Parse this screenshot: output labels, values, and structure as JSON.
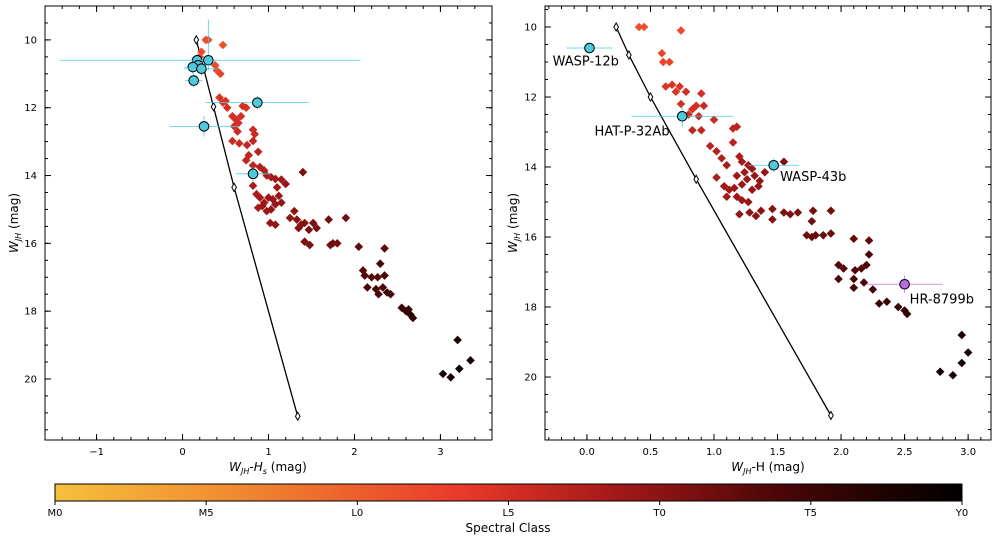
{
  "colors": {
    "planet": "#4ec9de",
    "planet_err": "#4ec9de",
    "hr8799b": "#b56ee0",
    "hr_err": "#d36ae8"
  },
  "chart_data": [
    {
      "type": "scatter",
      "xlabel": "W_JH-H_s (mag)",
      "ylabel": "W_JH (mag)",
      "xlim": [
        -1.6,
        3.6
      ],
      "ylim": [
        21.8,
        9.0
      ],
      "xticks": [
        -1,
        0,
        1,
        2,
        3
      ],
      "xtick_labels": [
        "−1",
        "0",
        "1",
        "2",
        "3"
      ],
      "yticks": [
        10,
        12,
        14,
        16,
        18,
        20
      ],
      "ytick_labels": [
        "10",
        "12",
        "14",
        "16",
        "18",
        "20"
      ],
      "sequence": [
        [
          0.16,
          10.0
        ],
        [
          0.36,
          11.97
        ],
        [
          0.6,
          14.35
        ],
        [
          1.34,
          21.1
        ]
      ],
      "stars": [
        [
          0.27,
          10.0,
          0.38
        ],
        [
          0.3,
          10.0,
          0.38
        ],
        [
          0.47,
          10.15,
          0.38
        ],
        [
          0.22,
          10.35,
          0.4
        ],
        [
          0.2,
          10.5,
          0.4
        ],
        [
          0.38,
          10.75,
          0.4
        ],
        [
          0.4,
          10.9,
          0.4
        ],
        [
          0.44,
          11.0,
          0.42
        ],
        [
          0.43,
          11.7,
          0.48
        ],
        [
          0.5,
          11.8,
          0.48
        ],
        [
          0.47,
          11.85,
          0.48
        ],
        [
          0.52,
          12.0,
          0.5
        ],
        [
          0.7,
          11.95,
          0.5
        ],
        [
          0.74,
          12.0,
          0.5
        ],
        [
          0.58,
          12.25,
          0.5
        ],
        [
          0.68,
          12.25,
          0.5
        ],
        [
          0.62,
          12.35,
          0.5
        ],
        [
          0.65,
          12.45,
          0.5
        ],
        [
          0.6,
          12.55,
          0.5
        ],
        [
          0.64,
          12.7,
          0.52
        ],
        [
          0.58,
          12.98,
          0.52
        ],
        [
          0.66,
          13.05,
          0.52
        ],
        [
          0.82,
          12.65,
          0.52
        ],
        [
          0.84,
          12.78,
          0.52
        ],
        [
          0.82,
          12.98,
          0.55
        ],
        [
          0.75,
          13.1,
          0.55
        ],
        [
          0.77,
          13.4,
          0.55
        ],
        [
          0.74,
          13.55,
          0.55
        ],
        [
          0.88,
          13.3,
          0.56
        ],
        [
          0.82,
          13.7,
          0.56
        ],
        [
          0.9,
          13.75,
          0.58
        ],
        [
          0.95,
          13.85,
          0.58
        ],
        [
          0.98,
          14.0,
          0.6
        ],
        [
          1.03,
          14.05,
          0.6
        ],
        [
          1.08,
          14.1,
          0.62
        ],
        [
          1.15,
          14.12,
          0.62
        ],
        [
          1.1,
          14.35,
          0.62
        ],
        [
          1.2,
          14.25,
          0.65
        ],
        [
          0.82,
          14.3,
          0.6
        ],
        [
          0.86,
          14.55,
          0.6
        ],
        [
          0.9,
          14.65,
          0.62
        ],
        [
          0.95,
          14.8,
          0.62
        ],
        [
          1.0,
          14.65,
          0.63
        ],
        [
          1.05,
          14.7,
          0.63
        ],
        [
          0.88,
          14.95,
          0.62
        ],
        [
          0.93,
          14.9,
          0.63
        ],
        [
          0.98,
          15.05,
          0.63
        ],
        [
          1.03,
          15.0,
          0.64
        ],
        [
          1.08,
          14.85,
          0.64
        ],
        [
          1.12,
          14.6,
          0.64
        ],
        [
          1.15,
          14.8,
          0.65
        ],
        [
          1.02,
          15.4,
          0.65
        ],
        [
          1.08,
          15.45,
          0.65
        ],
        [
          1.25,
          15.25,
          0.66
        ],
        [
          1.3,
          15.05,
          0.66
        ],
        [
          1.33,
          15.3,
          0.67
        ],
        [
          1.38,
          15.45,
          0.68
        ],
        [
          1.35,
          15.55,
          0.68
        ],
        [
          1.42,
          15.4,
          0.68
        ],
        [
          1.4,
          13.9,
          0.7
        ],
        [
          1.47,
          15.6,
          0.7
        ],
        [
          1.52,
          15.4,
          0.7
        ],
        [
          1.56,
          15.55,
          0.7
        ],
        [
          1.42,
          15.95,
          0.7
        ],
        [
          1.48,
          16.05,
          0.7
        ],
        [
          1.7,
          15.3,
          0.72
        ],
        [
          1.75,
          16.0,
          0.72
        ],
        [
          1.8,
          16.0,
          0.72
        ],
        [
          1.72,
          16.05,
          0.72
        ],
        [
          1.9,
          15.25,
          0.72
        ],
        [
          2.05,
          16.1,
          0.76
        ],
        [
          2.35,
          16.15,
          0.76
        ],
        [
          2.1,
          16.8,
          0.78
        ],
        [
          2.12,
          16.95,
          0.78
        ],
        [
          2.2,
          17.0,
          0.78
        ],
        [
          2.27,
          17.0,
          0.78
        ],
        [
          2.35,
          16.95,
          0.8
        ],
        [
          2.3,
          16.6,
          0.8
        ],
        [
          2.15,
          17.3,
          0.8
        ],
        [
          2.25,
          17.35,
          0.8
        ],
        [
          2.33,
          17.3,
          0.8
        ],
        [
          2.38,
          17.45,
          0.82
        ],
        [
          2.42,
          17.5,
          0.82
        ],
        [
          2.28,
          17.5,
          0.8
        ],
        [
          2.55,
          17.9,
          0.85
        ],
        [
          2.6,
          18.0,
          0.85
        ],
        [
          2.63,
          17.95,
          0.85
        ],
        [
          2.65,
          18.1,
          0.86
        ],
        [
          2.68,
          18.2,
          0.86
        ],
        [
          3.2,
          18.85,
          0.92
        ],
        [
          3.03,
          19.85,
          0.94
        ],
        [
          3.12,
          19.95,
          0.94
        ],
        [
          3.22,
          19.7,
          0.94
        ],
        [
          3.35,
          19.45,
          0.94
        ]
      ],
      "planets": [
        {
          "x": 0.17,
          "y": 10.6,
          "xerr": [
            1.6,
            1.9
          ],
          "yerr": [
            0.2,
            0.2
          ]
        },
        {
          "x": 0.3,
          "y": 10.6,
          "xerr": [
            0.1,
            0.1
          ],
          "yerr": [
            1.2,
            0.3
          ]
        },
        {
          "x": 0.18,
          "y": 10.75,
          "xerr": [
            0.1,
            0.15
          ],
          "yerr": [
            0.2,
            0.2
          ]
        },
        {
          "x": 0.12,
          "y": 10.8,
          "xerr": [
            0.1,
            0.1
          ],
          "yerr": [
            0.2,
            0.2
          ]
        },
        {
          "x": 0.22,
          "y": 10.85,
          "xerr": [
            0.2,
            0.2
          ],
          "yerr": [
            0.2,
            0.2
          ]
        },
        {
          "x": 0.13,
          "y": 11.2,
          "xerr": [
            0.1,
            0.1
          ],
          "yerr": [
            0.2,
            0.2
          ]
        },
        {
          "x": 0.87,
          "y": 11.85,
          "xerr": [
            0.6,
            0.6
          ],
          "yerr": [
            0.2,
            0.2
          ]
        },
        {
          "x": 0.25,
          "y": 12.55,
          "xerr": [
            0.4,
            0.4
          ],
          "yerr": [
            0.3,
            0.3
          ]
        },
        {
          "x": 0.82,
          "y": 13.95,
          "xerr": [
            0.2,
            0.2
          ],
          "yerr": [
            0.2,
            0.2
          ]
        }
      ]
    },
    {
      "type": "scatter",
      "xlabel": "W_JH-H (mag)",
      "ylabel": "W_JH (mag)",
      "xlim": [
        -0.33,
        3.18
      ],
      "ylim": [
        21.8,
        9.4
      ],
      "xticks": [
        0.0,
        0.5,
        1.0,
        1.5,
        2.0,
        2.5,
        3.0
      ],
      "xtick_labels": [
        "0.0",
        "0.5",
        "1.0",
        "1.5",
        "2.0",
        "2.5",
        "3.0"
      ],
      "yticks": [
        10,
        12,
        14,
        16,
        18,
        20
      ],
      "ytick_labels": [
        "10",
        "12",
        "14",
        "16",
        "18",
        "20"
      ],
      "sequence": [
        [
          0.23,
          10.0
        ],
        [
          0.33,
          10.8
        ],
        [
          0.5,
          12.0
        ],
        [
          0.86,
          14.35
        ],
        [
          1.92,
          21.1
        ]
      ],
      "stars": [
        [
          0.41,
          10.0,
          0.38
        ],
        [
          0.45,
          10.0,
          0.38
        ],
        [
          0.74,
          10.1,
          0.4
        ],
        [
          0.59,
          10.75,
          0.42
        ],
        [
          0.6,
          11.0,
          0.42
        ],
        [
          0.65,
          11.0,
          0.42
        ],
        [
          0.62,
          11.7,
          0.48
        ],
        [
          0.67,
          11.65,
          0.48
        ],
        [
          0.7,
          11.85,
          0.48
        ],
        [
          0.73,
          11.7,
          0.48
        ],
        [
          0.78,
          11.85,
          0.5
        ],
        [
          0.74,
          12.2,
          0.5
        ],
        [
          0.83,
          12.35,
          0.5
        ],
        [
          0.86,
          12.25,
          0.5
        ],
        [
          0.9,
          11.9,
          0.5
        ],
        [
          0.92,
          12.25,
          0.52
        ],
        [
          0.8,
          12.5,
          0.52
        ],
        [
          0.88,
          12.55,
          0.52
        ],
        [
          1.0,
          12.65,
          0.52
        ],
        [
          0.9,
          12.95,
          0.55
        ],
        [
          0.83,
          12.95,
          0.55
        ],
        [
          1.15,
          12.9,
          0.55
        ],
        [
          1.18,
          12.85,
          0.56
        ],
        [
          1.15,
          13.3,
          0.56
        ],
        [
          0.97,
          13.4,
          0.56
        ],
        [
          1.02,
          13.55,
          0.58
        ],
        [
          1.06,
          13.75,
          0.58
        ],
        [
          1.1,
          13.95,
          0.6
        ],
        [
          1.2,
          13.7,
          0.6
        ],
        [
          1.22,
          13.85,
          0.62
        ],
        [
          1.27,
          13.95,
          0.62
        ],
        [
          1.3,
          14.05,
          0.63
        ],
        [
          1.24,
          14.15,
          0.63
        ],
        [
          1.18,
          14.25,
          0.63
        ],
        [
          1.02,
          14.3,
          0.6
        ],
        [
          1.08,
          14.55,
          0.62
        ],
        [
          1.12,
          14.65,
          0.62
        ],
        [
          1.16,
          14.6,
          0.63
        ],
        [
          1.22,
          14.5,
          0.63
        ],
        [
          1.26,
          14.35,
          0.64
        ],
        [
          1.32,
          14.25,
          0.64
        ],
        [
          1.36,
          14.4,
          0.65
        ],
        [
          1.4,
          14.15,
          0.65
        ],
        [
          1.35,
          14.55,
          0.65
        ],
        [
          1.1,
          14.85,
          0.62
        ],
        [
          1.18,
          14.85,
          0.63
        ],
        [
          1.22,
          14.95,
          0.64
        ],
        [
          1.27,
          15.0,
          0.64
        ],
        [
          1.3,
          14.65,
          0.65
        ],
        [
          1.2,
          15.35,
          0.66
        ],
        [
          1.28,
          15.3,
          0.66
        ],
        [
          1.33,
          15.4,
          0.67
        ],
        [
          1.37,
          15.25,
          0.67
        ],
        [
          1.46,
          15.2,
          0.68
        ],
        [
          1.46,
          15.5,
          0.68
        ],
        [
          1.55,
          15.3,
          0.7
        ],
        [
          1.6,
          15.35,
          0.7
        ],
        [
          1.66,
          15.3,
          0.7
        ],
        [
          1.55,
          13.85,
          0.7
        ],
        [
          1.78,
          15.25,
          0.72
        ],
        [
          1.77,
          15.55,
          0.72
        ],
        [
          1.92,
          15.25,
          0.72
        ],
        [
          1.73,
          15.95,
          0.72
        ],
        [
          1.77,
          16.0,
          0.74
        ],
        [
          1.8,
          15.95,
          0.74
        ],
        [
          1.86,
          15.95,
          0.74
        ],
        [
          1.92,
          15.9,
          0.74
        ],
        [
          2.1,
          16.05,
          0.76
        ],
        [
          2.22,
          16.1,
          0.76
        ],
        [
          1.98,
          16.8,
          0.78
        ],
        [
          2.02,
          16.9,
          0.78
        ],
        [
          2.11,
          16.95,
          0.78
        ],
        [
          2.16,
          16.9,
          0.78
        ],
        [
          2.2,
          16.8,
          0.8
        ],
        [
          2.22,
          16.5,
          0.8
        ],
        [
          1.98,
          17.2,
          0.8
        ],
        [
          2.1,
          17.2,
          0.8
        ],
        [
          2.18,
          17.3,
          0.8
        ],
        [
          2.1,
          17.45,
          0.82
        ],
        [
          2.25,
          17.5,
          0.82
        ],
        [
          2.3,
          17.9,
          0.85
        ],
        [
          2.36,
          17.85,
          0.85
        ],
        [
          2.45,
          18.0,
          0.85
        ],
        [
          2.5,
          18.1,
          0.86
        ],
        [
          2.52,
          18.2,
          0.86
        ],
        [
          2.95,
          18.8,
          0.92
        ],
        [
          2.78,
          19.85,
          0.94
        ],
        [
          2.88,
          19.95,
          0.94
        ],
        [
          2.95,
          19.6,
          0.94
        ],
        [
          3.0,
          19.3,
          0.94
        ]
      ],
      "planets": [
        {
          "x": 0.02,
          "y": 10.6,
          "xerr": [
            0.18,
            0.18
          ],
          "yerr": [
            0.15,
            0.15
          ],
          "color": "planet"
        },
        {
          "x": 0.75,
          "y": 12.55,
          "xerr": [
            0.4,
            0.4
          ],
          "yerr": [
            0.3,
            0.3
          ],
          "color": "planet"
        },
        {
          "x": 1.47,
          "y": 13.95,
          "xerr": [
            0.2,
            0.2
          ],
          "yerr": [
            0.2,
            0.2
          ],
          "color": "planet"
        },
        {
          "x": 2.5,
          "y": 17.35,
          "xerr": [
            0.3,
            0.3
          ],
          "yerr": [
            0.25,
            0.25
          ],
          "color": "hr8799b"
        }
      ],
      "labels": [
        {
          "text": "WASP-12b",
          "x": -0.27,
          "y": 11.1
        },
        {
          "text": "HAT-P-32Ab",
          "x": 0.06,
          "y": 13.1
        },
        {
          "text": "WASP-43b",
          "x": 1.52,
          "y": 14.4
        },
        {
          "text": "HR-8799b",
          "x": 2.54,
          "y": 17.9
        }
      ]
    }
  ],
  "colorbar": {
    "label": "Spectral Class",
    "ticks": [
      "M0",
      "M5",
      "L0",
      "L5",
      "T0",
      "T5",
      "Y0"
    ]
  }
}
